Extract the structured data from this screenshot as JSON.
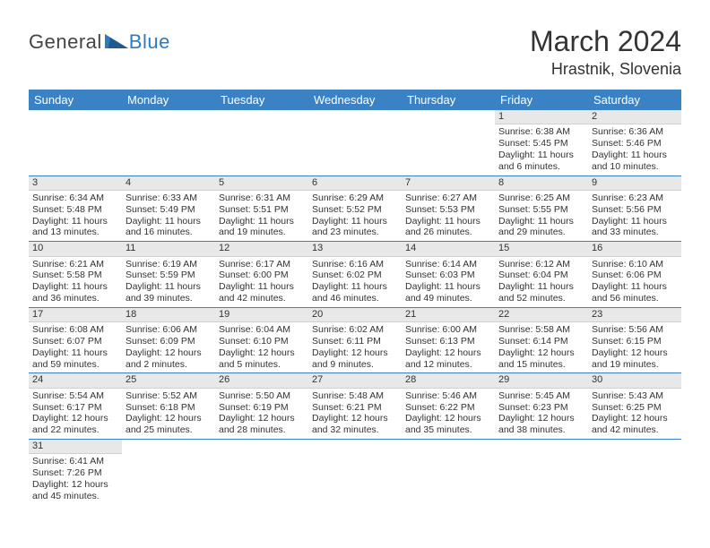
{
  "logo": {
    "text1": "General",
    "text2": "Blue",
    "color1": "#444444",
    "color2": "#2b7bbf",
    "triangle_color": "#2b7bbf"
  },
  "title": "March 2024",
  "location": "Hrastnik, Slovenia",
  "colors": {
    "header_bg": "#3b82c4",
    "header_text": "#ffffff",
    "cell_num_bg": "#e8e8e8",
    "row_border": "#3b82c4",
    "text": "#333333",
    "background": "#ffffff"
  },
  "typography": {
    "title_fontsize": 32,
    "location_fontsize": 18,
    "dayhead_fontsize": 13,
    "cell_fontsize": 10.5
  },
  "day_headers": [
    "Sunday",
    "Monday",
    "Tuesday",
    "Wednesday",
    "Thursday",
    "Friday",
    "Saturday"
  ],
  "weeks": [
    [
      {
        "n": "",
        "sunrise": "",
        "sunset": "",
        "daylight1": "",
        "daylight2": ""
      },
      {
        "n": "",
        "sunrise": "",
        "sunset": "",
        "daylight1": "",
        "daylight2": ""
      },
      {
        "n": "",
        "sunrise": "",
        "sunset": "",
        "daylight1": "",
        "daylight2": ""
      },
      {
        "n": "",
        "sunrise": "",
        "sunset": "",
        "daylight1": "",
        "daylight2": ""
      },
      {
        "n": "",
        "sunrise": "",
        "sunset": "",
        "daylight1": "",
        "daylight2": ""
      },
      {
        "n": "1",
        "sunrise": "Sunrise: 6:38 AM",
        "sunset": "Sunset: 5:45 PM",
        "daylight1": "Daylight: 11 hours",
        "daylight2": "and 6 minutes."
      },
      {
        "n": "2",
        "sunrise": "Sunrise: 6:36 AM",
        "sunset": "Sunset: 5:46 PM",
        "daylight1": "Daylight: 11 hours",
        "daylight2": "and 10 minutes."
      }
    ],
    [
      {
        "n": "3",
        "sunrise": "Sunrise: 6:34 AM",
        "sunset": "Sunset: 5:48 PM",
        "daylight1": "Daylight: 11 hours",
        "daylight2": "and 13 minutes."
      },
      {
        "n": "4",
        "sunrise": "Sunrise: 6:33 AM",
        "sunset": "Sunset: 5:49 PM",
        "daylight1": "Daylight: 11 hours",
        "daylight2": "and 16 minutes."
      },
      {
        "n": "5",
        "sunrise": "Sunrise: 6:31 AM",
        "sunset": "Sunset: 5:51 PM",
        "daylight1": "Daylight: 11 hours",
        "daylight2": "and 19 minutes."
      },
      {
        "n": "6",
        "sunrise": "Sunrise: 6:29 AM",
        "sunset": "Sunset: 5:52 PM",
        "daylight1": "Daylight: 11 hours",
        "daylight2": "and 23 minutes."
      },
      {
        "n": "7",
        "sunrise": "Sunrise: 6:27 AM",
        "sunset": "Sunset: 5:53 PM",
        "daylight1": "Daylight: 11 hours",
        "daylight2": "and 26 minutes."
      },
      {
        "n": "8",
        "sunrise": "Sunrise: 6:25 AM",
        "sunset": "Sunset: 5:55 PM",
        "daylight1": "Daylight: 11 hours",
        "daylight2": "and 29 minutes."
      },
      {
        "n": "9",
        "sunrise": "Sunrise: 6:23 AM",
        "sunset": "Sunset: 5:56 PM",
        "daylight1": "Daylight: 11 hours",
        "daylight2": "and 33 minutes."
      }
    ],
    [
      {
        "n": "10",
        "sunrise": "Sunrise: 6:21 AM",
        "sunset": "Sunset: 5:58 PM",
        "daylight1": "Daylight: 11 hours",
        "daylight2": "and 36 minutes."
      },
      {
        "n": "11",
        "sunrise": "Sunrise: 6:19 AM",
        "sunset": "Sunset: 5:59 PM",
        "daylight1": "Daylight: 11 hours",
        "daylight2": "and 39 minutes."
      },
      {
        "n": "12",
        "sunrise": "Sunrise: 6:17 AM",
        "sunset": "Sunset: 6:00 PM",
        "daylight1": "Daylight: 11 hours",
        "daylight2": "and 42 minutes."
      },
      {
        "n": "13",
        "sunrise": "Sunrise: 6:16 AM",
        "sunset": "Sunset: 6:02 PM",
        "daylight1": "Daylight: 11 hours",
        "daylight2": "and 46 minutes."
      },
      {
        "n": "14",
        "sunrise": "Sunrise: 6:14 AM",
        "sunset": "Sunset: 6:03 PM",
        "daylight1": "Daylight: 11 hours",
        "daylight2": "and 49 minutes."
      },
      {
        "n": "15",
        "sunrise": "Sunrise: 6:12 AM",
        "sunset": "Sunset: 6:04 PM",
        "daylight1": "Daylight: 11 hours",
        "daylight2": "and 52 minutes."
      },
      {
        "n": "16",
        "sunrise": "Sunrise: 6:10 AM",
        "sunset": "Sunset: 6:06 PM",
        "daylight1": "Daylight: 11 hours",
        "daylight2": "and 56 minutes."
      }
    ],
    [
      {
        "n": "17",
        "sunrise": "Sunrise: 6:08 AM",
        "sunset": "Sunset: 6:07 PM",
        "daylight1": "Daylight: 11 hours",
        "daylight2": "and 59 minutes."
      },
      {
        "n": "18",
        "sunrise": "Sunrise: 6:06 AM",
        "sunset": "Sunset: 6:09 PM",
        "daylight1": "Daylight: 12 hours",
        "daylight2": "and 2 minutes."
      },
      {
        "n": "19",
        "sunrise": "Sunrise: 6:04 AM",
        "sunset": "Sunset: 6:10 PM",
        "daylight1": "Daylight: 12 hours",
        "daylight2": "and 5 minutes."
      },
      {
        "n": "20",
        "sunrise": "Sunrise: 6:02 AM",
        "sunset": "Sunset: 6:11 PM",
        "daylight1": "Daylight: 12 hours",
        "daylight2": "and 9 minutes."
      },
      {
        "n": "21",
        "sunrise": "Sunrise: 6:00 AM",
        "sunset": "Sunset: 6:13 PM",
        "daylight1": "Daylight: 12 hours",
        "daylight2": "and 12 minutes."
      },
      {
        "n": "22",
        "sunrise": "Sunrise: 5:58 AM",
        "sunset": "Sunset: 6:14 PM",
        "daylight1": "Daylight: 12 hours",
        "daylight2": "and 15 minutes."
      },
      {
        "n": "23",
        "sunrise": "Sunrise: 5:56 AM",
        "sunset": "Sunset: 6:15 PM",
        "daylight1": "Daylight: 12 hours",
        "daylight2": "and 19 minutes."
      }
    ],
    [
      {
        "n": "24",
        "sunrise": "Sunrise: 5:54 AM",
        "sunset": "Sunset: 6:17 PM",
        "daylight1": "Daylight: 12 hours",
        "daylight2": "and 22 minutes."
      },
      {
        "n": "25",
        "sunrise": "Sunrise: 5:52 AM",
        "sunset": "Sunset: 6:18 PM",
        "daylight1": "Daylight: 12 hours",
        "daylight2": "and 25 minutes."
      },
      {
        "n": "26",
        "sunrise": "Sunrise: 5:50 AM",
        "sunset": "Sunset: 6:19 PM",
        "daylight1": "Daylight: 12 hours",
        "daylight2": "and 28 minutes."
      },
      {
        "n": "27",
        "sunrise": "Sunrise: 5:48 AM",
        "sunset": "Sunset: 6:21 PM",
        "daylight1": "Daylight: 12 hours",
        "daylight2": "and 32 minutes."
      },
      {
        "n": "28",
        "sunrise": "Sunrise: 5:46 AM",
        "sunset": "Sunset: 6:22 PM",
        "daylight1": "Daylight: 12 hours",
        "daylight2": "and 35 minutes."
      },
      {
        "n": "29",
        "sunrise": "Sunrise: 5:45 AM",
        "sunset": "Sunset: 6:23 PM",
        "daylight1": "Daylight: 12 hours",
        "daylight2": "and 38 minutes."
      },
      {
        "n": "30",
        "sunrise": "Sunrise: 5:43 AM",
        "sunset": "Sunset: 6:25 PM",
        "daylight1": "Daylight: 12 hours",
        "daylight2": "and 42 minutes."
      }
    ],
    [
      {
        "n": "31",
        "sunrise": "Sunrise: 6:41 AM",
        "sunset": "Sunset: 7:26 PM",
        "daylight1": "Daylight: 12 hours",
        "daylight2": "and 45 minutes."
      },
      {
        "n": "",
        "sunrise": "",
        "sunset": "",
        "daylight1": "",
        "daylight2": ""
      },
      {
        "n": "",
        "sunrise": "",
        "sunset": "",
        "daylight1": "",
        "daylight2": ""
      },
      {
        "n": "",
        "sunrise": "",
        "sunset": "",
        "daylight1": "",
        "daylight2": ""
      },
      {
        "n": "",
        "sunrise": "",
        "sunset": "",
        "daylight1": "",
        "daylight2": ""
      },
      {
        "n": "",
        "sunrise": "",
        "sunset": "",
        "daylight1": "",
        "daylight2": ""
      },
      {
        "n": "",
        "sunrise": "",
        "sunset": "",
        "daylight1": "",
        "daylight2": ""
      }
    ]
  ]
}
